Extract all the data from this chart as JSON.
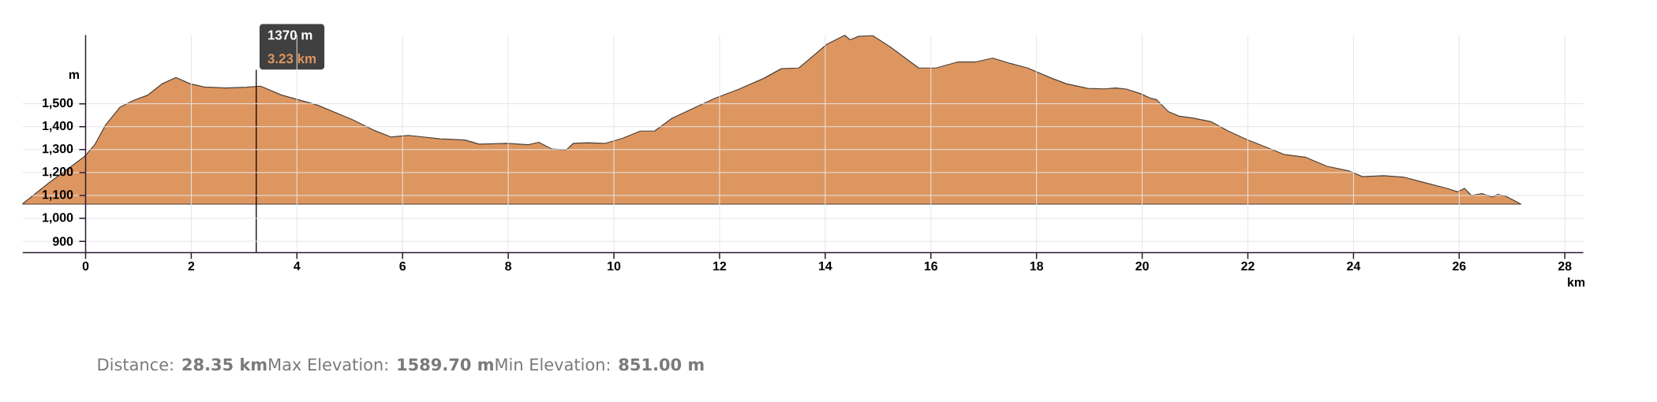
{
  "chart_data": {
    "type": "area",
    "xlabel": "km",
    "ylabel": "m",
    "x": [
      -1.19,
      -0.69,
      -0.29,
      -0.02,
      0.18,
      0.38,
      0.65,
      0.91,
      1.18,
      1.45,
      1.71,
      1.98,
      2.25,
      2.65,
      3.05,
      3.31,
      3.71,
      4.38,
      5.05,
      5.45,
      5.78,
      6.11,
      6.71,
      7.18,
      7.45,
      7.98,
      8.38,
      8.58,
      8.83,
      9.1,
      9.23,
      9.5,
      9.83,
      10.17,
      10.5,
      10.77,
      11.1,
      11.5,
      11.9,
      12.37,
      12.83,
      13.17,
      13.5,
      14.03,
      14.37,
      14.47,
      14.63,
      14.9,
      15.23,
      15.77,
      16.1,
      16.5,
      16.83,
      17.17,
      17.5,
      17.83,
      18.3,
      18.57,
      18.97,
      19.28,
      19.5,
      19.7,
      19.97,
      20.17,
      20.27,
      20.5,
      20.7,
      20.97,
      21.3,
      21.63,
      21.97,
      22.3,
      22.7,
      23.1,
      23.5,
      23.9,
      24.17,
      24.57,
      24.97,
      25.3,
      25.77,
      25.97,
      26.1,
      26.23,
      26.43,
      26.63,
      26.73,
      26.9,
      27.17
    ],
    "series": [
      {
        "color": "#de9660",
        "values": [
          1064,
          1156,
          1224,
          1270,
          1324,
          1408,
          1485,
          1515,
          1538,
          1587,
          1615,
          1587,
          1573,
          1569,
          1572,
          1577,
          1538,
          1495,
          1431,
          1385,
          1355,
          1362,
          1347,
          1342,
          1324,
          1327,
          1321,
          1332,
          1302,
          1299,
          1327,
          1330,
          1327,
          1350,
          1381,
          1381,
          1437,
          1480,
          1523,
          1564,
          1610,
          1653,
          1656,
          1759,
          1799,
          1779,
          1794,
          1797,
          1748,
          1656,
          1656,
          1682,
          1682,
          1699,
          1676,
          1656,
          1610,
          1587,
          1567,
          1565,
          1569,
          1564,
          1544,
          1523,
          1518,
          1465,
          1446,
          1437,
          1422,
          1381,
          1345,
          1315,
          1278,
          1266,
          1227,
          1208,
          1182,
          1186,
          1179,
          1159,
          1131,
          1116,
          1131,
          1100,
          1108,
          1093,
          1105,
          1095,
          1062
        ]
      }
    ],
    "xlim": [
      -1.19,
      28.35
    ],
    "ylim": [
      851,
      1800
    ],
    "xticks": [
      0,
      2,
      4,
      6,
      8,
      10,
      12,
      14,
      16,
      18,
      20,
      22,
      24,
      26,
      28
    ],
    "yticks": [
      {
        "value": 900,
        "label": "900"
      },
      {
        "value": 1000,
        "label": "1,000"
      },
      {
        "value": 1100,
        "label": "1,100"
      },
      {
        "value": 1200,
        "label": "1,200"
      },
      {
        "value": 1300,
        "label": "1,300"
      },
      {
        "value": 1400,
        "label": "1,400"
      },
      {
        "value": 1500,
        "label": "1,500"
      }
    ],
    "grid": true,
    "ref_lines": [
      {
        "axis": "x",
        "value": 3.23,
        "label": "3.23 km"
      }
    ],
    "annotations": [
      "1370 m",
      "Distance: **28.35 km**Max Elevation: **1589.70 m**Min Elevation: **851.00 m**"
    ]
  }
}
